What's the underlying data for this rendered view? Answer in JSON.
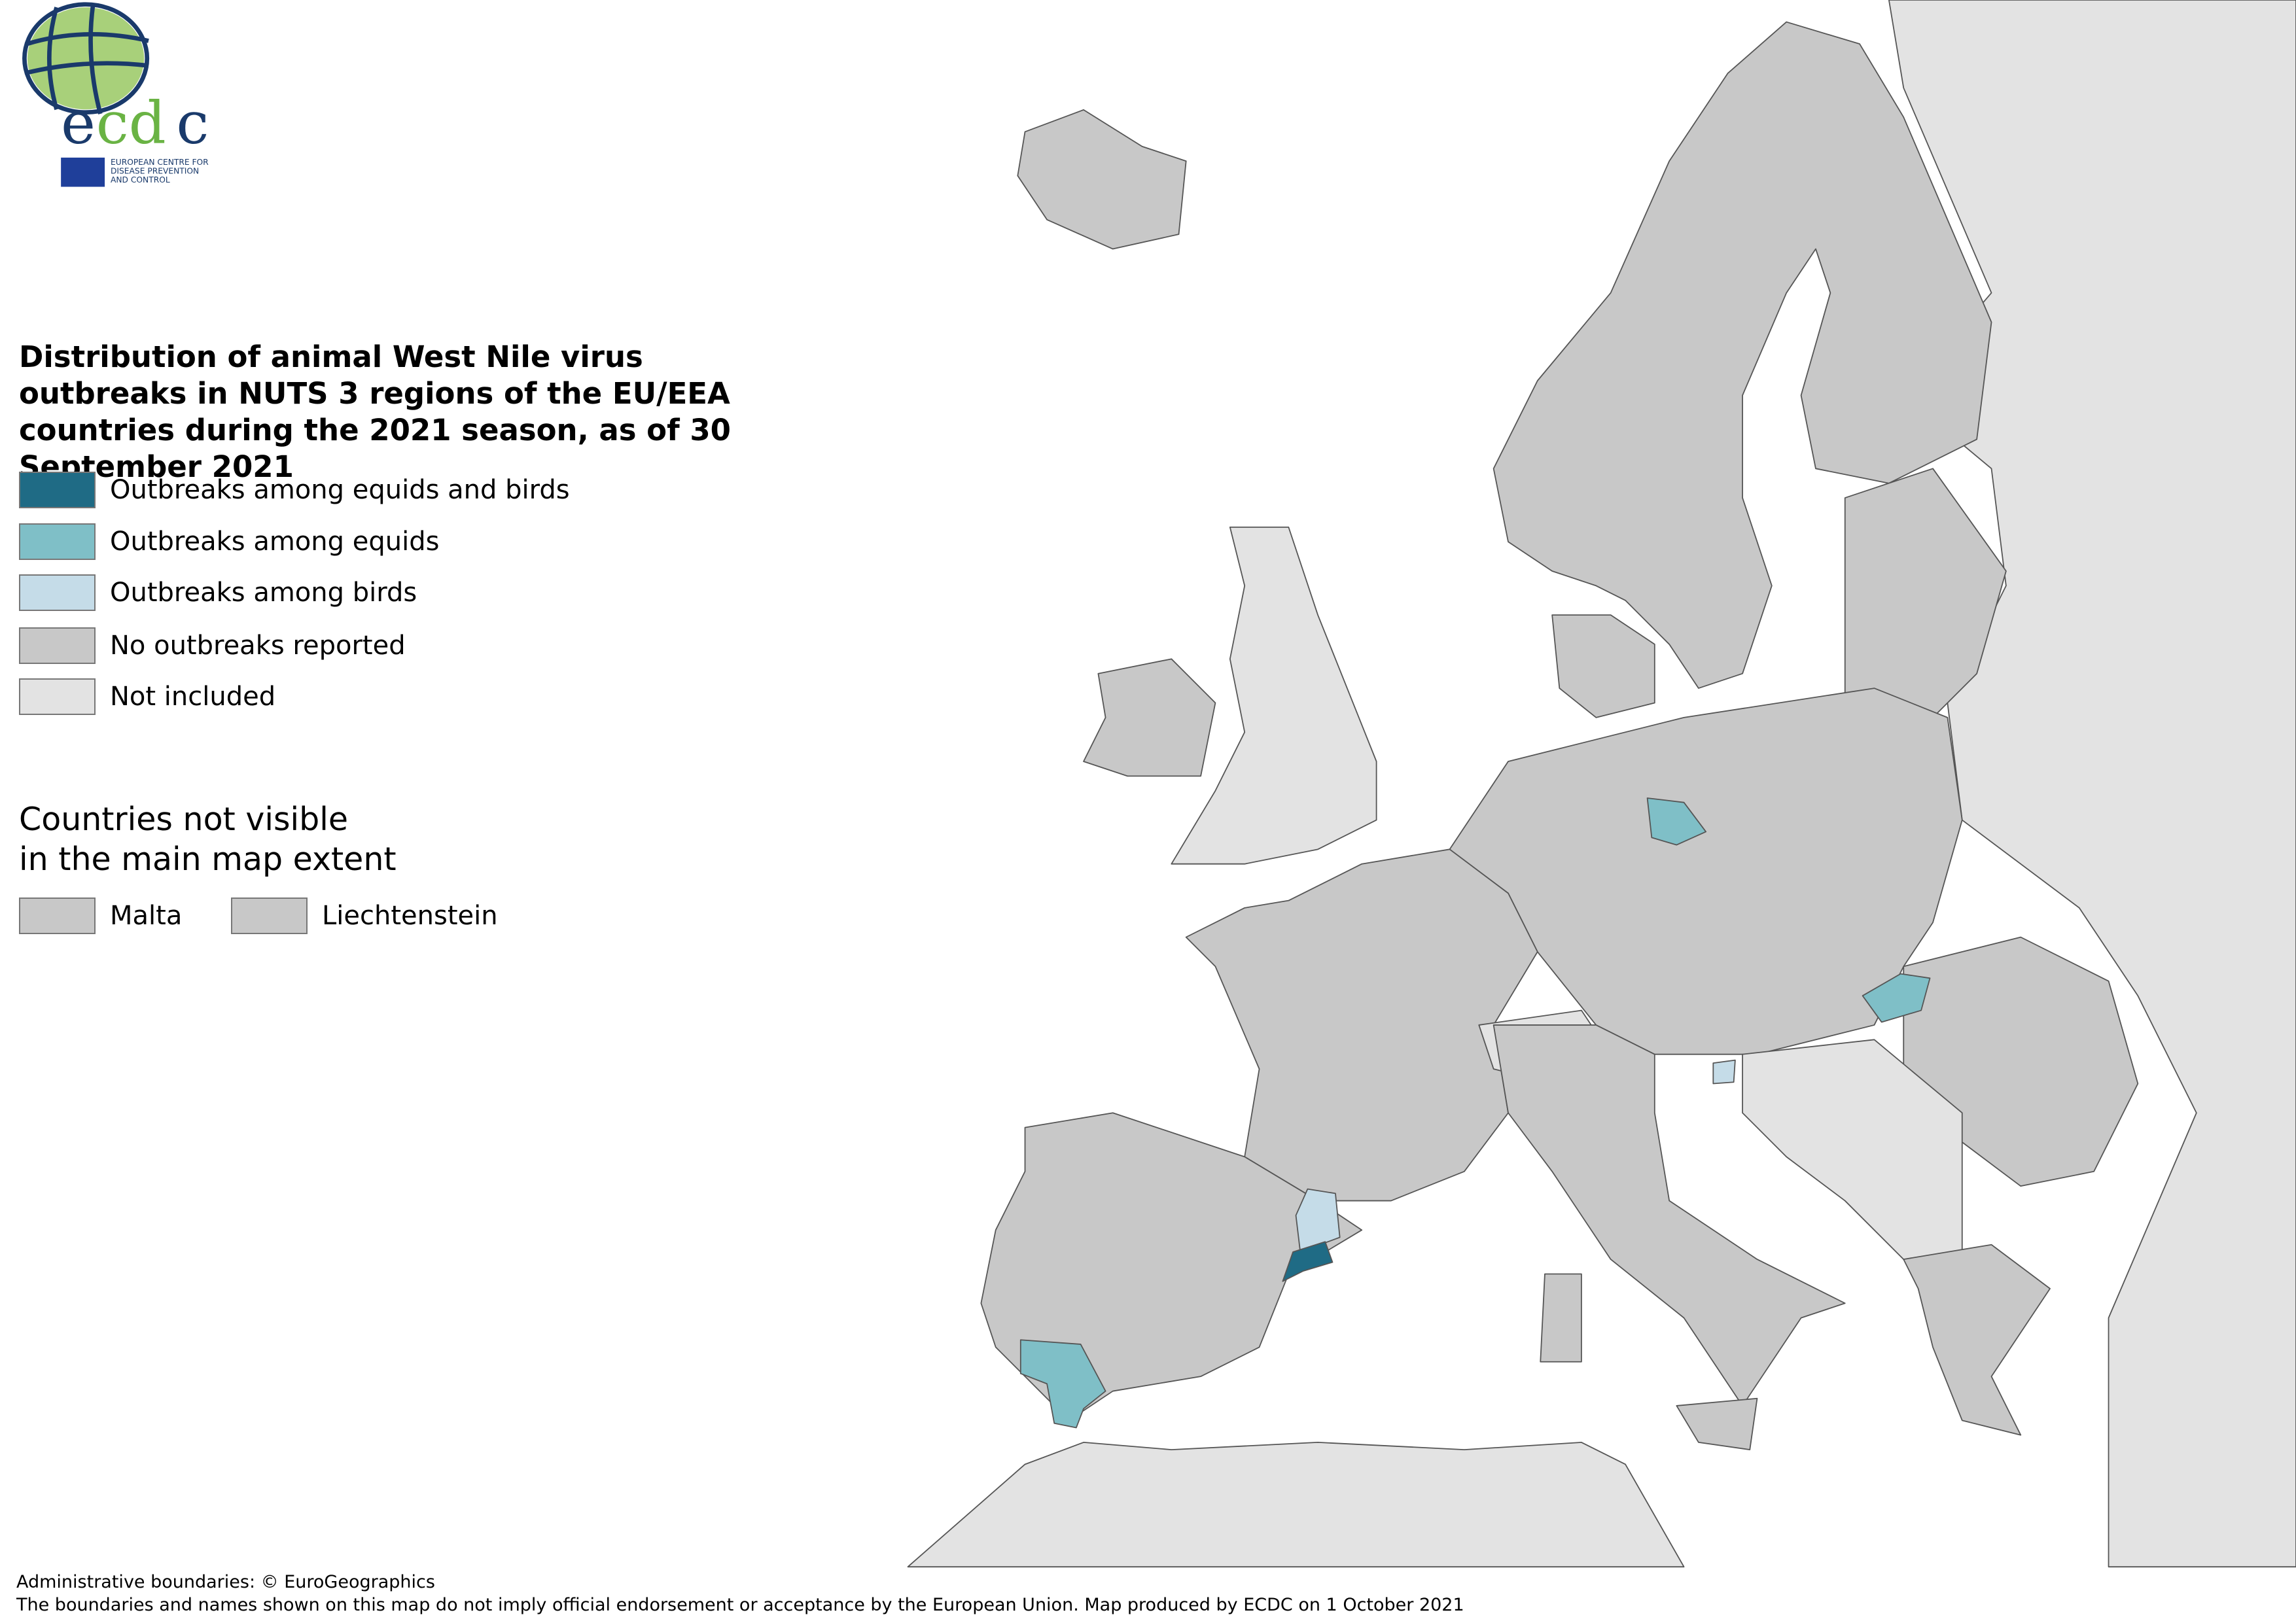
{
  "logo": {
    "wordmark": "ecdc",
    "org_name": "EUROPEAN CENTRE FOR DISEASE PREVENTION AND CONTROL"
  },
  "title": "Distribution of animal West Nile virus outbreaks in NUTS 3 regions of the EU/EEA countries during the 2021 season, as of 30 September 2021",
  "legend": [
    {
      "label": "Outbreaks among equids and birds",
      "color": "#1f6b85"
    },
    {
      "label": "Outbreaks among equids",
      "color": "#7fbfc7"
    },
    {
      "label": "Outbreaks among birds",
      "color": "#c5dce8"
    },
    {
      "label": "No outbreaks reported",
      "color": "#c8c8c8"
    },
    {
      "label": "Not included",
      "color": "#e3e3e3"
    }
  ],
  "extent": {
    "title_line1": "Countries not visible",
    "title_line2": "in the main map extent",
    "countries": [
      {
        "label": "Malta",
        "category": "No outbreaks reported"
      },
      {
        "label": "Liechtenstein",
        "category": "No outbreaks reported"
      }
    ]
  },
  "highlighted_regions": [
    {
      "area": "Germany (east)",
      "category": "Outbreaks among equids"
    },
    {
      "area": "Hungary",
      "category": "Outbreaks among equids"
    },
    {
      "area": "Slovenia",
      "category": "Outbreaks among birds"
    },
    {
      "area": "Spain (Catalonia, north)",
      "category": "Outbreaks among birds"
    },
    {
      "area": "Spain (Tarragona)",
      "category": "Outbreaks among equids and birds"
    },
    {
      "area": "Spain (Andalusia)",
      "category": "Outbreaks among equids"
    }
  ],
  "footer": {
    "line1": "Administrative boundaries: © EuroGeographics",
    "line2": "The boundaries and names shown on this map do not imply official endorsement or acceptance by the European Union. Map produced by ECDC on 1 October 2021"
  }
}
